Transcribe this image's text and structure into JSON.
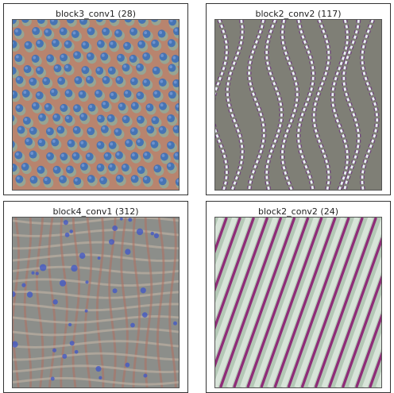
{
  "panels": [
    {
      "title": "block3_conv1 (28)",
      "pattern": "blue-dots",
      "colors": {
        "base": "#b8846e",
        "spot": "#3d6fb8",
        "glow": "#6fcfc0"
      }
    },
    {
      "title": "block2_conv2 (117)",
      "pattern": "wavy-stripes",
      "colors": {
        "base": "#7f7f76",
        "stripe": "#e8f0f2",
        "edge": "#6b3a7a"
      }
    },
    {
      "title": "block4_conv1 (312)",
      "pattern": "woven-grid",
      "colors": {
        "base": "#8c8e8a",
        "line": "#b07060",
        "spot": "#3f55c8"
      }
    },
    {
      "title": "block2_conv2 (24)",
      "pattern": "diagonal-stripes",
      "colors": {
        "base": "#b4c8b6",
        "stripe": "#8e2d78",
        "light": "#e8f0e8"
      }
    }
  ]
}
